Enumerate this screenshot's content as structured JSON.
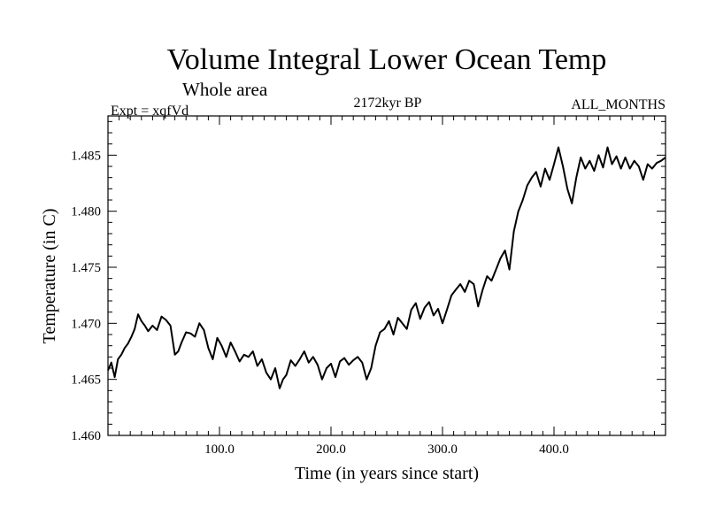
{
  "chart_data": {
    "type": "line",
    "title": "Volume Integral Lower Ocean Temp",
    "subtitle": "Whole area",
    "expt_label": "Expt = xqfVd",
    "period_label": "2172kyr BP",
    "months_label": "ALL_MONTHS",
    "xlabel": "Time (in years since start)",
    "ylabel": "Temperature (in C)",
    "xlim": [
      0,
      500
    ],
    "ylim": [
      1.46,
      1.4885
    ],
    "xticks_major": [
      100,
      200,
      300,
      400
    ],
    "xticks_minor": [
      10,
      20,
      30,
      40,
      50,
      60,
      70,
      80,
      90,
      110,
      120,
      130,
      140,
      150,
      160,
      170,
      180,
      190,
      210,
      220,
      230,
      240,
      250,
      260,
      270,
      280,
      290,
      310,
      320,
      330,
      340,
      350,
      360,
      370,
      380,
      390,
      410,
      420,
      430,
      440,
      450,
      460,
      470,
      480,
      490
    ],
    "xtick_labels": [
      "100.0",
      "200.0",
      "300.0",
      "400.0"
    ],
    "yticks_major": [
      1.46,
      1.465,
      1.47,
      1.475,
      1.48,
      1.485
    ],
    "yticks_minor": [
      1.461,
      1.462,
      1.463,
      1.464,
      1.466,
      1.467,
      1.468,
      1.469,
      1.471,
      1.472,
      1.473,
      1.474,
      1.476,
      1.477,
      1.478,
      1.479,
      1.481,
      1.482,
      1.483,
      1.484,
      1.486,
      1.487,
      1.488
    ],
    "ytick_labels": [
      "1.460",
      "1.465",
      "1.470",
      "1.475",
      "1.480",
      "1.485"
    ],
    "series": [
      {
        "name": "Volume Integral Lower Ocean Temp",
        "x": [
          0,
          3,
          6,
          9,
          12,
          15,
          18,
          21,
          24,
          27,
          30,
          33,
          36,
          40,
          44,
          48,
          52,
          56,
          60,
          63,
          66,
          70,
          74,
          78,
          82,
          86,
          90,
          94,
          98,
          102,
          106,
          110,
          114,
          118,
          122,
          126,
          130,
          134,
          138,
          142,
          146,
          150,
          154,
          157,
          160,
          164,
          168,
          172,
          176,
          180,
          184,
          188,
          192,
          196,
          200,
          204,
          208,
          212,
          216,
          220,
          224,
          228,
          232,
          236,
          240,
          244,
          248,
          252,
          256,
          260,
          264,
          268,
          272,
          276,
          280,
          284,
          288,
          292,
          296,
          300,
          304,
          308,
          312,
          316,
          320,
          324,
          328,
          332,
          336,
          340,
          344,
          348,
          352,
          356,
          360,
          364,
          368,
          372,
          376,
          380,
          384,
          388,
          392,
          396,
          400,
          404,
          408,
          412,
          416,
          420,
          424,
          428,
          432,
          436,
          440,
          444,
          448,
          452,
          456,
          460,
          464,
          468,
          472,
          476,
          480,
          484,
          488,
          492,
          496,
          500
        ],
        "values": [
          1.4658,
          1.4665,
          1.4652,
          1.4668,
          1.4672,
          1.4678,
          1.4682,
          1.4688,
          1.4695,
          1.4708,
          1.4702,
          1.4698,
          1.4693,
          1.4698,
          1.4694,
          1.4706,
          1.4703,
          1.4698,
          1.4672,
          1.4675,
          1.4683,
          1.4692,
          1.4691,
          1.4688,
          1.47,
          1.4694,
          1.4678,
          1.4668,
          1.4687,
          1.468,
          1.467,
          1.4683,
          1.4675,
          1.4666,
          1.4672,
          1.467,
          1.4675,
          1.4662,
          1.4668,
          1.4656,
          1.465,
          1.466,
          1.4642,
          1.465,
          1.4654,
          1.4667,
          1.4662,
          1.4668,
          1.4675,
          1.4665,
          1.467,
          1.4663,
          1.465,
          1.466,
          1.4664,
          1.4652,
          1.4666,
          1.4669,
          1.4663,
          1.4667,
          1.467,
          1.4665,
          1.465,
          1.466,
          1.468,
          1.4692,
          1.4695,
          1.4702,
          1.469,
          1.4705,
          1.47,
          1.4695,
          1.4712,
          1.4718,
          1.4704,
          1.4714,
          1.4719,
          1.4707,
          1.4713,
          1.47,
          1.4712,
          1.4725,
          1.473,
          1.4735,
          1.4728,
          1.4738,
          1.4735,
          1.4715,
          1.473,
          1.4742,
          1.4738,
          1.4748,
          1.4758,
          1.4765,
          1.4748,
          1.4782,
          1.48,
          1.481,
          1.4823,
          1.483,
          1.4835,
          1.4822,
          1.4838,
          1.4828,
          1.4842,
          1.4857,
          1.484,
          1.482,
          1.4807,
          1.483,
          1.4848,
          1.4838,
          1.4845,
          1.4836,
          1.485,
          1.4839,
          1.4857,
          1.4842,
          1.4849,
          1.4838,
          1.4848,
          1.4838,
          1.4845,
          1.484,
          1.4828,
          1.4842,
          1.4838,
          1.4843,
          1.4845,
          1.4848
        ]
      }
    ]
  }
}
